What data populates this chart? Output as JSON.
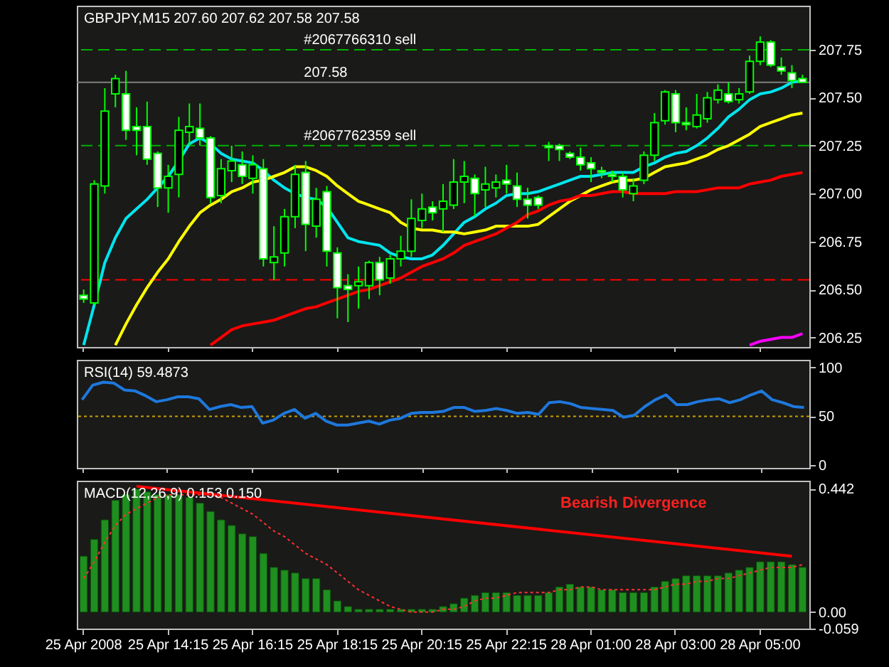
{
  "chart_data": [
    {
      "type": "candlestick",
      "title": "GBPJPY,M15  207.60 207.62 207.58 207.58",
      "categories": [
        "25 Apr 2008",
        null,
        null,
        null,
        null,
        null,
        null,
        null,
        "25 Apr 14:15",
        null,
        null,
        null,
        null,
        null,
        null,
        null,
        "25 Apr 16:15",
        null,
        null,
        null,
        null,
        null,
        null,
        null,
        "25 Apr 18:15",
        null,
        null,
        null,
        null,
        null,
        null,
        null,
        "25 Apr 20:15",
        null,
        null,
        null,
        null,
        null,
        null,
        null,
        "25 Apr 22:15",
        null,
        null,
        null,
        null,
        null,
        null,
        null,
        "28 Apr 01:00",
        null,
        null,
        null,
        null,
        null,
        null,
        null,
        "28 Apr 03:00",
        null,
        null,
        null,
        null,
        null,
        null,
        null,
        "28 Apr 05:00",
        null,
        null,
        null,
        null
      ],
      "ohlc": [
        [
          206.47,
          206.5,
          206.43,
          206.45
        ],
        [
          206.43,
          207.07,
          206.42,
          207.05
        ],
        [
          207.04,
          207.55,
          207.0,
          207.43
        ],
        [
          207.52,
          207.62,
          207.45,
          207.6
        ],
        [
          207.52,
          207.64,
          207.28,
          207.33
        ],
        [
          207.35,
          207.45,
          207.2,
          207.33
        ],
        [
          207.35,
          207.48,
          207.15,
          207.18
        ],
        [
          207.21,
          207.22,
          206.93,
          207.03
        ],
        [
          207.03,
          207.15,
          206.9,
          207.09
        ],
        [
          207.1,
          207.4,
          206.98,
          207.33
        ],
        [
          207.32,
          207.47,
          207.25,
          207.35
        ],
        [
          207.34,
          207.47,
          207.25,
          207.29
        ],
        [
          207.29,
          207.3,
          206.95,
          206.98
        ],
        [
          206.99,
          207.18,
          206.95,
          207.13
        ],
        [
          207.12,
          207.25,
          207.06,
          207.17
        ],
        [
          207.15,
          207.22,
          207.05,
          207.09
        ],
        [
          207.08,
          207.2,
          207.0,
          207.15
        ],
        [
          207.13,
          207.18,
          206.62,
          206.66
        ],
        [
          206.64,
          206.83,
          206.55,
          206.67
        ],
        [
          206.69,
          206.92,
          206.62,
          206.88
        ],
        [
          206.88,
          207.15,
          206.82,
          207.1
        ],
        [
          207.11,
          207.17,
          206.7,
          206.84
        ],
        [
          206.83,
          207.03,
          206.77,
          206.97
        ],
        [
          207.01,
          207.04,
          206.62,
          206.7
        ],
        [
          206.69,
          206.72,
          206.35,
          206.51
        ],
        [
          206.52,
          206.58,
          206.33,
          206.5
        ],
        [
          206.52,
          206.62,
          206.4,
          206.54
        ],
        [
          206.52,
          206.65,
          206.45,
          206.64
        ],
        [
          206.64,
          206.67,
          206.47,
          206.55
        ],
        [
          206.56,
          206.68,
          206.53,
          206.66
        ],
        [
          206.66,
          206.78,
          206.62,
          206.7
        ],
        [
          206.7,
          206.97,
          206.67,
          206.87
        ],
        [
          206.86,
          207.0,
          206.82,
          206.92
        ],
        [
          206.93,
          206.96,
          206.86,
          206.9
        ],
        [
          206.92,
          207.05,
          206.8,
          206.96
        ],
        [
          206.94,
          207.18,
          206.92,
          207.06
        ],
        [
          207.06,
          207.17,
          206.95,
          207.09
        ],
        [
          207.08,
          207.1,
          206.88,
          207.0
        ],
        [
          207.02,
          207.14,
          206.93,
          207.05
        ],
        [
          207.03,
          207.1,
          206.98,
          207.06
        ],
        [
          207.07,
          207.15,
          207.0,
          207.05
        ],
        [
          207.04,
          207.11,
          206.93,
          206.97
        ],
        [
          206.97,
          207.03,
          206.87,
          206.94
        ],
        [
          206.98,
          206.99,
          206.92,
          206.94
        ],
        [
          207.25,
          207.27,
          207.17,
          207.24
        ],
        [
          207.25,
          207.26,
          207.17,
          207.23
        ],
        [
          207.21,
          207.22,
          207.18,
          207.19
        ],
        [
          207.19,
          207.24,
          207.12,
          207.15
        ],
        [
          207.16,
          207.19,
          207.06,
          207.13
        ],
        [
          207.12,
          207.14,
          207.08,
          207.11
        ],
        [
          207.1,
          207.12,
          207.06,
          207.09
        ],
        [
          207.09,
          207.11,
          206.98,
          207.02
        ],
        [
          207.0,
          207.08,
          206.96,
          207.04
        ],
        [
          207.07,
          207.22,
          207.05,
          207.2
        ],
        [
          207.2,
          207.42,
          207.17,
          207.37
        ],
        [
          207.38,
          207.54,
          207.36,
          207.53
        ],
        [
          207.52,
          207.54,
          207.32,
          207.37
        ],
        [
          207.37,
          207.45,
          207.33,
          207.36
        ],
        [
          207.35,
          207.52,
          207.34,
          207.41
        ],
        [
          207.39,
          207.53,
          207.37,
          207.5
        ],
        [
          207.49,
          207.57,
          207.47,
          207.54
        ],
        [
          207.52,
          207.58,
          207.47,
          207.48
        ],
        [
          207.49,
          207.55,
          207.47,
          207.52
        ],
        [
          207.53,
          207.72,
          207.52,
          207.69
        ],
        [
          207.69,
          207.82,
          207.67,
          207.79
        ],
        [
          207.79,
          207.8,
          207.66,
          207.67
        ],
        [
          207.66,
          207.71,
          207.62,
          207.64
        ],
        [
          207.63,
          207.67,
          207.55,
          207.59
        ],
        [
          207.6,
          207.62,
          207.58,
          207.58
        ]
      ],
      "series": [
        {
          "type": "line",
          "color": "#00e5ee",
          "values": [
            206.21,
            206.42,
            206.64,
            206.77,
            206.87,
            206.92,
            206.97,
            207.03,
            207.09,
            207.17,
            207.26,
            207.29,
            207.26,
            207.21,
            207.18,
            207.17,
            207.16,
            207.12,
            207.07,
            207.03,
            207.0,
            206.98,
            206.97,
            206.93,
            206.85,
            206.77,
            206.75,
            206.74,
            206.73,
            206.69,
            206.67,
            206.66,
            206.66,
            206.68,
            206.73,
            206.79,
            206.85,
            206.88,
            206.92,
            206.95,
            206.99,
            207.0,
            207.0,
            207.01,
            207.03,
            207.05,
            207.07,
            207.09,
            207.09,
            207.1,
            207.11,
            207.11,
            207.11,
            207.14,
            207.16,
            207.19,
            207.21,
            207.22,
            207.25,
            207.29,
            207.34,
            207.4,
            207.44,
            207.49,
            207.52,
            207.53,
            207.55,
            207.58,
            207.59
          ]
        },
        {
          "type": "line",
          "color": "#ffff00",
          "values": [
            null,
            null,
            null,
            206.21,
            206.32,
            206.42,
            206.51,
            206.59,
            206.66,
            206.75,
            206.83,
            206.9,
            206.94,
            206.97,
            207.01,
            207.03,
            207.06,
            207.07,
            207.09,
            207.11,
            207.14,
            207.14,
            207.12,
            207.09,
            207.04,
            207.0,
            206.96,
            206.94,
            206.92,
            206.9,
            206.85,
            206.82,
            206.81,
            206.81,
            206.8,
            206.8,
            206.79,
            206.8,
            206.81,
            206.83,
            206.83,
            206.83,
            206.83,
            206.84,
            206.88,
            206.92,
            206.96,
            206.99,
            207.02,
            207.04,
            207.06,
            207.07,
            207.07,
            207.08,
            207.11,
            207.14,
            207.15,
            207.16,
            207.18,
            207.2,
            207.23,
            207.25,
            207.28,
            207.31,
            207.35,
            207.37,
            207.39,
            207.41,
            207.42
          ]
        },
        {
          "type": "line",
          "color": "#ff0000",
          "values": [
            null,
            null,
            null,
            null,
            null,
            null,
            null,
            null,
            null,
            null,
            null,
            null,
            206.21,
            206.25,
            206.29,
            206.31,
            206.32,
            206.33,
            206.34,
            206.36,
            206.38,
            206.4,
            206.41,
            206.43,
            206.45,
            206.47,
            206.49,
            206.5,
            206.52,
            206.54,
            206.56,
            206.59,
            206.62,
            206.64,
            206.66,
            206.69,
            206.73,
            206.75,
            206.77,
            206.79,
            206.82,
            206.85,
            206.89,
            206.91,
            206.94,
            206.96,
            206.97,
            206.99,
            206.99,
            207.0,
            207.01,
            207.01,
            207.0,
            207.0,
            207.0,
            207.0,
            207.01,
            207.01,
            207.01,
            207.02,
            207.03,
            207.03,
            207.03,
            207.05,
            207.06,
            207.07,
            207.09,
            207.1,
            207.11
          ]
        },
        {
          "type": "line",
          "color": "#ff00ff",
          "values": [
            null,
            null,
            null,
            null,
            null,
            null,
            null,
            null,
            null,
            null,
            null,
            null,
            null,
            null,
            null,
            null,
            null,
            null,
            null,
            null,
            null,
            null,
            null,
            null,
            null,
            null,
            null,
            null,
            null,
            null,
            null,
            null,
            null,
            null,
            null,
            null,
            null,
            null,
            null,
            null,
            null,
            null,
            null,
            null,
            null,
            null,
            null,
            null,
            null,
            null,
            null,
            null,
            null,
            null,
            null,
            null,
            null,
            null,
            null,
            null,
            null,
            null,
            null,
            206.21,
            206.23,
            206.24,
            206.25,
            206.25,
            206.27
          ]
        }
      ],
      "ylim": [
        206.2,
        207.98
      ],
      "yticks": [
        {
          "value": 206.25,
          "label": "206.25"
        },
        {
          "value": 206.5,
          "label": "206.50"
        },
        {
          "value": 206.75,
          "label": "206.75"
        },
        {
          "value": 207,
          "label": "207.00"
        },
        {
          "value": 207.25,
          "label": "207.25"
        },
        {
          "value": 207.5,
          "label": "207.50"
        },
        {
          "value": 207.75,
          "label": "207.75"
        }
      ],
      "ref_lines": [
        {
          "axis": "y",
          "value": 207.75,
          "label": "#2067766310 sell",
          "color": "#00b000",
          "line_style": "dashed"
        },
        {
          "axis": "y",
          "value": 207.25,
          "label": "#2067762359 sell",
          "color": "#00b000",
          "line_style": "dashed"
        },
        {
          "axis": "y",
          "value": 206.55,
          "color": "#ff0000",
          "line_style": "dashed"
        },
        {
          "axis": "y",
          "value": 207.58,
          "label": "207.58",
          "color": "#808080",
          "line_style": "solid"
        }
      ],
      "tick_labels": "y"
    },
    {
      "type": "line",
      "title": "RSI(14) 59.4873",
      "categories": [
        "25 Apr 2008",
        null,
        null,
        null,
        null,
        null,
        null,
        null,
        "25 Apr 14:15",
        null,
        null,
        null,
        null,
        null,
        null,
        null,
        "25 Apr 16:15",
        null,
        null,
        null,
        null,
        null,
        null,
        null,
        "25 Apr 18:15",
        null,
        null,
        null,
        null,
        null,
        null,
        null,
        "25 Apr 20:15",
        null,
        null,
        null,
        null,
        null,
        null,
        null,
        "25 Apr 22:15",
        null,
        null,
        null,
        null,
        null,
        null,
        null,
        "28 Apr 01:00",
        null,
        null,
        null,
        null,
        null,
        null,
        null,
        "28 Apr 03:00",
        null,
        null,
        null,
        null,
        null,
        null,
        null,
        "28 Apr 05:00",
        null,
        null,
        null,
        null
      ],
      "series": [
        {
          "color": "#1e78dc",
          "values": [
            67,
            82,
            85,
            84,
            77,
            76,
            71,
            65,
            67,
            70,
            70,
            68,
            57,
            60,
            62,
            59,
            60,
            43,
            46,
            53,
            57,
            48,
            53,
            45,
            41,
            41,
            43,
            45,
            42,
            46,
            48,
            53,
            54,
            54,
            55,
            59,
            59,
            55,
            56,
            58,
            56,
            53,
            54,
            52,
            64,
            65,
            63,
            59,
            58,
            57,
            56,
            49,
            51,
            60,
            67,
            72,
            62,
            62,
            65,
            67,
            68,
            64,
            67,
            72,
            76,
            67,
            64,
            60,
            59
          ]
        }
      ],
      "ylim": [
        -3,
        108
      ],
      "yticks": [
        0,
        50,
        100
      ],
      "ref_lines": [
        {
          "axis": "y",
          "value": 50,
          "color": "#c8a000",
          "line_style": "dotted"
        }
      ],
      "tick_labels": "y"
    },
    {
      "type": "bar",
      "title": "MACD(12,26,9) 0.153 0.150",
      "categories": [
        "25 Apr 2008",
        null,
        null,
        null,
        null,
        null,
        null,
        null,
        "25 Apr 14:15",
        null,
        null,
        null,
        null,
        null,
        null,
        null,
        "25 Apr 16:15",
        null,
        null,
        null,
        null,
        null,
        null,
        null,
        "25 Apr 18:15",
        null,
        null,
        null,
        null,
        null,
        null,
        null,
        "25 Apr 20:15",
        null,
        null,
        null,
        null,
        null,
        null,
        null,
        "25 Apr 22:15",
        null,
        null,
        null,
        null,
        null,
        null,
        null,
        "28 Apr 01:00",
        null,
        null,
        null,
        null,
        null,
        null,
        null,
        "28 Apr 03:00",
        null,
        null,
        null,
        null,
        null,
        null,
        null,
        "28 Apr 05:00",
        null,
        null,
        null,
        null
      ],
      "series": [
        {
          "type": "bar",
          "color": "#1f8f1f",
          "values": [
            0.2,
            0.26,
            0.33,
            0.4,
            0.42,
            0.44,
            0.43,
            0.42,
            0.42,
            0.42,
            0.41,
            0.39,
            0.36,
            0.33,
            0.31,
            0.28,
            0.27,
            0.21,
            0.16,
            0.15,
            0.14,
            0.12,
            0.12,
            0.08,
            0.04,
            0.02,
            0.01,
            0.01,
            0.01,
            0.01,
            0.01,
            0.01,
            0.01,
            0.01,
            0.02,
            0.03,
            0.05,
            0.06,
            0.07,
            0.07,
            0.07,
            0.06,
            0.06,
            0.06,
            0.07,
            0.09,
            0.1,
            0.09,
            0.09,
            0.08,
            0.08,
            0.07,
            0.07,
            0.07,
            0.09,
            0.11,
            0.12,
            0.13,
            0.13,
            0.13,
            0.13,
            0.14,
            0.15,
            0.16,
            0.18,
            0.18,
            0.18,
            0.17,
            0.16
          ]
        },
        {
          "type": "line",
          "color": "#ff3030",
          "line_style": "dotted",
          "values": [
            0.12,
            0.18,
            0.25,
            0.31,
            0.35,
            0.37,
            0.39,
            0.41,
            0.42,
            0.42,
            0.42,
            0.42,
            0.42,
            0.41,
            0.39,
            0.37,
            0.35,
            0.32,
            0.29,
            0.27,
            0.24,
            0.21,
            0.19,
            0.17,
            0.14,
            0.11,
            0.08,
            0.06,
            0.04,
            0.02,
            0.01,
            0.0,
            0.0,
            0.0,
            0.01,
            0.01,
            0.02,
            0.04,
            0.05,
            0.05,
            0.06,
            0.07,
            0.07,
            0.07,
            0.07,
            0.08,
            0.08,
            0.09,
            0.09,
            0.08,
            0.08,
            0.08,
            0.08,
            0.08,
            0.08,
            0.09,
            0.1,
            0.1,
            0.11,
            0.11,
            0.12,
            0.12,
            0.13,
            0.14,
            0.15,
            0.16,
            0.16,
            0.16,
            0.17
          ]
        },
        {
          "type": "line",
          "color": "#ff0000",
          "values": [
            null,
            null,
            null,
            null,
            null,
            0.45,
            null,
            null,
            null,
            null,
            null,
            null,
            null,
            null,
            null,
            null,
            null,
            null,
            null,
            null,
            null,
            null,
            null,
            null,
            null,
            null,
            null,
            null,
            null,
            null,
            null,
            null,
            null,
            null,
            null,
            null,
            null,
            null,
            null,
            null,
            null,
            null,
            null,
            null,
            null,
            null,
            null,
            null,
            null,
            null,
            null,
            null,
            null,
            null,
            null,
            null,
            null,
            null,
            null,
            null,
            null,
            null,
            null,
            null,
            null,
            null,
            null,
            0.2,
            null
          ]
        }
      ],
      "ylim": [
        -0.059,
        0.47
      ],
      "yticks": [
        {
          "value": -0.059,
          "label": "-0.059"
        },
        {
          "value": 0,
          "label": "0.00"
        },
        0.442
      ],
      "annotations": [
        "Bearish Divergence"
      ]
    }
  ]
}
